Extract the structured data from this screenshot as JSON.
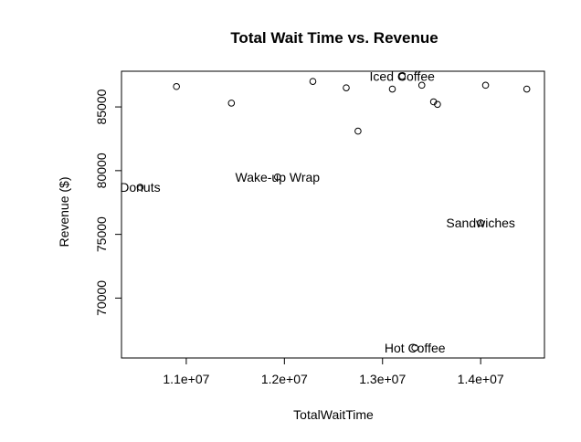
{
  "chart_data": {
    "type": "scatter",
    "title": "Total Wait Time vs. Revenue",
    "xlabel": "TotalWaitTime",
    "ylabel": "Revenue ($)",
    "xlim": [
      10340000,
      14650000
    ],
    "ylim": [
      65300,
      87800
    ],
    "xticks": [
      {
        "value": 11000000,
        "label": "1.1e+07"
      },
      {
        "value": 12000000,
        "label": "1.2e+07"
      },
      {
        "value": 13000000,
        "label": "1.3e+07"
      },
      {
        "value": 14000000,
        "label": "1.4e+07"
      }
    ],
    "yticks": [
      {
        "value": 70000,
        "label": "70000"
      },
      {
        "value": 75000,
        "label": "75000"
      },
      {
        "value": 80000,
        "label": "80000"
      },
      {
        "value": 85000,
        "label": "85000"
      }
    ],
    "grid": false,
    "points": [
      {
        "x": 10530000,
        "y": 78700
      },
      {
        "x": 10900000,
        "y": 86600
      },
      {
        "x": 11460000,
        "y": 85300
      },
      {
        "x": 11930000,
        "y": 79500
      },
      {
        "x": 12290000,
        "y": 87000
      },
      {
        "x": 12630000,
        "y": 86500
      },
      {
        "x": 12750000,
        "y": 83100
      },
      {
        "x": 13100000,
        "y": 86400
      },
      {
        "x": 13200000,
        "y": 87400
      },
      {
        "x": 13330000,
        "y": 66100
      },
      {
        "x": 13400000,
        "y": 86700
      },
      {
        "x": 13520000,
        "y": 85400
      },
      {
        "x": 13560000,
        "y": 85200
      },
      {
        "x": 14000000,
        "y": 75900
      },
      {
        "x": 14050000,
        "y": 86700
      },
      {
        "x": 14470000,
        "y": 86400
      }
    ],
    "annotations": [
      {
        "text": "Iced Coffee",
        "x": 13200000,
        "y": 87400
      },
      {
        "text": "Donuts",
        "x": 10530000,
        "y": 78700
      },
      {
        "text": "Wake-up Wrap",
        "x": 11930000,
        "y": 79500
      },
      {
        "text": "Sandwiches",
        "x": 14000000,
        "y": 75900
      },
      {
        "text": "Hot Coffee",
        "x": 13330000,
        "y": 66100
      }
    ]
  }
}
